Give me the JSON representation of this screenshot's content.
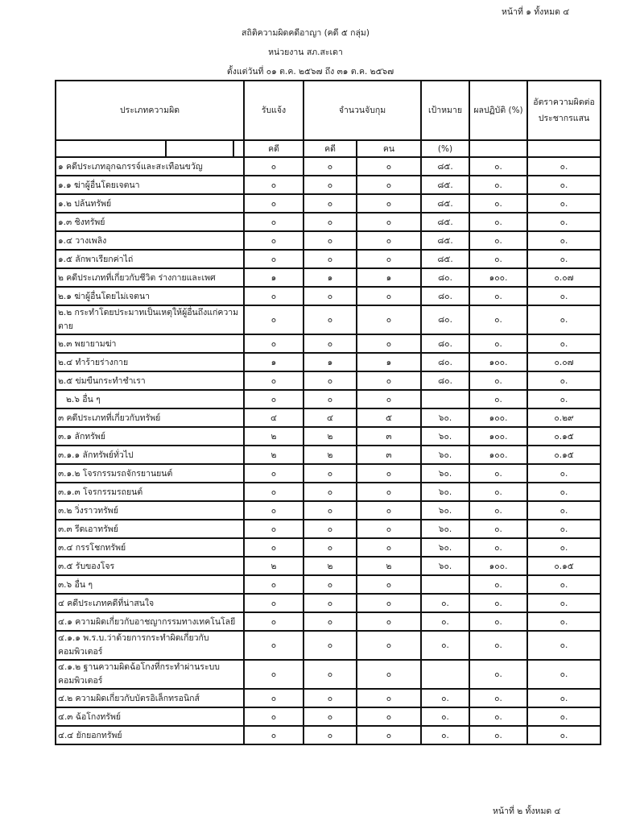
{
  "page_top": "หน้าที่ ๑  ทั้งหมด ๔",
  "page_bottom": "หน้าที่ ๒  ทั้งหมด ๔",
  "title": "สถิติความผิดคดีอาญา (คดี ๕ กลุ่ม)",
  "unit": "หน่วยงาน สภ.สะเดา",
  "period": "ตั้งแต่วันที่ ๐๑ ต.ค. ๒๕๖๗ ถึง ๓๑ ต.ค. ๒๕๖๗",
  "headers": {
    "type": "ประเภทความผิด",
    "received": "รับแจ้ง",
    "arrested": "จำนวนจับกุม",
    "target": "เป้าหมาย",
    "performance": "ผลปฏิบัติ (%)",
    "rate": "อัตราความผิดต่อประชากรแสน"
  },
  "subheaders": {
    "received": "คดี",
    "arrest_cases": "คดี",
    "arrest_persons": "คน",
    "target": "(%)"
  },
  "rows": [
    {
      "label": "๑ คดีประเภทอุกฉกรรจ์และสะเทือนขวัญ",
      "v": [
        "๐",
        "๐",
        "๐",
        "๘๕.",
        "๐.",
        "๐."
      ]
    },
    {
      "label": "๑.๑ ฆ่าผู้อื่นโดยเจตนา",
      "v": [
        "๐",
        "๐",
        "๐",
        "๘๕.",
        "๐.",
        "๐."
      ]
    },
    {
      "label": "๑.๒ ปล้นทรัพย์",
      "v": [
        "๐",
        "๐",
        "๐",
        "๘๕.",
        "๐.",
        "๐."
      ]
    },
    {
      "label": "๑.๓ ชิงทรัพย์",
      "v": [
        "๐",
        "๐",
        "๐",
        "๘๕.",
        "๐.",
        "๐."
      ]
    },
    {
      "label": "๑.๔ วางเพลิง",
      "v": [
        "๐",
        "๐",
        "๐",
        "๘๕.",
        "๐.",
        "๐."
      ]
    },
    {
      "label": "๑.๕ ลักพาเรียกค่าไถ่",
      "v": [
        "๐",
        "๐",
        "๐",
        "๘๕.",
        "๐.",
        "๐."
      ]
    },
    {
      "label": "๒ คดีประเภทที่เกี่ยวกับชีวิต ร่างกายและเพศ",
      "v": [
        "๑",
        "๑",
        "๑",
        "๘๐.",
        "๑๐๐.",
        "๐.๐๗"
      ]
    },
    {
      "label": "๒.๑ ฆ่าผู้อื่นโดยไม่เจตนา",
      "v": [
        "๐",
        "๐",
        "๐",
        "๘๐.",
        "๐.",
        "๐."
      ]
    },
    {
      "label": "๒.๒ กระทำโดยประมาทเป็นเหตุให้ผู้อื่นถึงแก่ความตาย",
      "v": [
        "๐",
        "๐",
        "๐",
        "๘๐.",
        "๐.",
        "๐."
      ],
      "tall": true
    },
    {
      "label": "๒.๓ พยายามฆ่า",
      "v": [
        "๐",
        "๐",
        "๐",
        "๘๐.",
        "๐.",
        "๐."
      ]
    },
    {
      "label": "๒.๔ ทำร้ายร่างกาย",
      "v": [
        "๑",
        "๑",
        "๑",
        "๘๐.",
        "๑๐๐.",
        "๐.๐๗"
      ]
    },
    {
      "label": "๒.๕ ข่มขืนกระทำชำเรา",
      "v": [
        "๐",
        "๐",
        "๐",
        "๘๐.",
        "๐.",
        "๐."
      ]
    },
    {
      "label": "๒.๖ อื่น ๆ",
      "v": [
        "๐",
        "๐",
        "๐",
        "",
        "๐.",
        "๐."
      ],
      "indent": true
    },
    {
      "label": "๓ คดีประเภทที่เกี่ยวกับทรัพย์",
      "v": [
        "๔",
        "๔",
        "๕",
        "๖๐.",
        "๑๐๐.",
        "๐.๒๙"
      ]
    },
    {
      "label": "๓.๑ ลักทรัพย์",
      "v": [
        "๒",
        "๒",
        "๓",
        "๖๐.",
        "๑๐๐.",
        "๐.๑๕"
      ]
    },
    {
      "label": "๓.๑.๑ ลักทรัพย์ทั่วไป",
      "v": [
        "๒",
        "๒",
        "๓",
        "๖๐.",
        "๑๐๐.",
        "๐.๑๕"
      ]
    },
    {
      "label": "๓.๑.๒ โจรกรรมรถจักรยานยนต์",
      "v": [
        "๐",
        "๐",
        "๐",
        "๖๐.",
        "๐.",
        "๐."
      ]
    },
    {
      "label": "๓.๑.๓ โจรกรรมรถยนต์",
      "v": [
        "๐",
        "๐",
        "๐",
        "๖๐.",
        "๐.",
        "๐."
      ]
    },
    {
      "label": "๓.๒ วิ่งราวทรัพย์",
      "v": [
        "๐",
        "๐",
        "๐",
        "๖๐.",
        "๐.",
        "๐."
      ]
    },
    {
      "label": "๓.๓ รีดเอาทรัพย์",
      "v": [
        "๐",
        "๐",
        "๐",
        "๖๐.",
        "๐.",
        "๐."
      ]
    },
    {
      "label": "๓.๔ กรรโชกทรัพย์",
      "v": [
        "๐",
        "๐",
        "๐",
        "๖๐.",
        "๐.",
        "๐."
      ]
    },
    {
      "label": "๓.๕ รับของโจร",
      "v": [
        "๒",
        "๒",
        "๒",
        "๖๐.",
        "๑๐๐.",
        "๐.๑๕"
      ]
    },
    {
      "label": "๓.๖ อื่น ๆ",
      "v": [
        "๐",
        "๐",
        "๐",
        "",
        "๐.",
        "๐."
      ]
    },
    {
      "label": "๔ คดีประเภทคดีที่น่าสนใจ",
      "v": [
        "๐",
        "๐",
        "๐",
        "๐.",
        "๐.",
        "๐."
      ]
    },
    {
      "label": "๔.๑ ความผิดเกี่ยวกับอาชญากรรมทางเทคโนโลยี",
      "v": [
        "๐",
        "๐",
        "๐",
        "๐.",
        "๐.",
        "๐."
      ]
    },
    {
      "label": "๔.๑.๑ พ.ร.บ.ว่าด้วยการกระทำผิดเกี่ยวกับคอมพิวเตอร์",
      "v": [
        "๐",
        "๐",
        "๐",
        "๐.",
        "๐.",
        "๐."
      ],
      "tall": true
    },
    {
      "label": "๔.๑.๒ ฐานความผิดฉ้อโกงที่กระทำผ่านระบบคอมพิวเตอร์",
      "v": [
        "๐",
        "๐",
        "๐",
        "",
        "๐.",
        "๐."
      ],
      "tall": true
    },
    {
      "label": "๔.๒ ความผิดเกี่ยวกับบัตรอิเล็กทรอนิกส์",
      "v": [
        "๐",
        "๐",
        "๐",
        "๐.",
        "๐.",
        "๐."
      ]
    },
    {
      "label": "๔.๓ ฉ้อโกงทรัพย์",
      "v": [
        "๐",
        "๐",
        "๐",
        "๐.",
        "๐.",
        "๐."
      ]
    },
    {
      "label": "๔.๔ ยักยอกทรัพย์",
      "v": [
        "๐",
        "๐",
        "๐",
        "๐.",
        "๐.",
        "๐."
      ]
    }
  ]
}
